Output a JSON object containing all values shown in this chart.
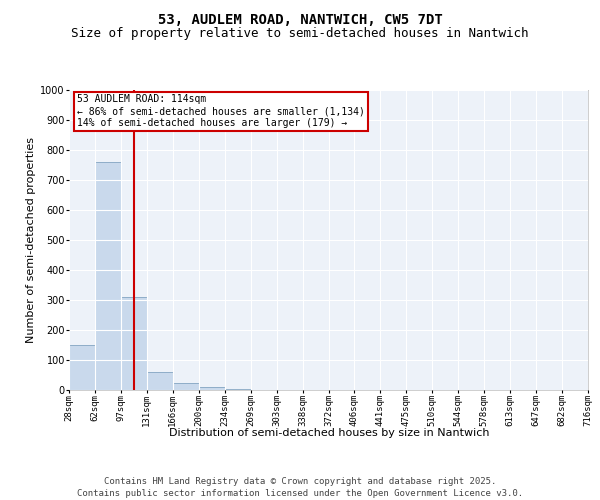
{
  "title_line1": "53, AUDLEM ROAD, NANTWICH, CW5 7DT",
  "title_line2": "Size of property relative to semi-detached houses in Nantwich",
  "xlabel": "Distribution of semi-detached houses by size in Nantwich",
  "ylabel": "Number of semi-detached properties",
  "annotation_title": "53 AUDLEM ROAD: 114sqm",
  "annotation_line2": "← 86% of semi-detached houses are smaller (1,134)",
  "annotation_line3": "14% of semi-detached houses are larger (179) →",
  "footer_line1": "Contains HM Land Registry data © Crown copyright and database right 2025.",
  "footer_line2": "Contains public sector information licensed under the Open Government Licence v3.0.",
  "bin_labels": [
    "28sqm",
    "62sqm",
    "97sqm",
    "131sqm",
    "166sqm",
    "200sqm",
    "234sqm",
    "269sqm",
    "303sqm",
    "338sqm",
    "372sqm",
    "406sqm",
    "441sqm",
    "475sqm",
    "510sqm",
    "544sqm",
    "578sqm",
    "613sqm",
    "647sqm",
    "682sqm",
    "716sqm"
  ],
  "bar_values": [
    150,
    760,
    310,
    60,
    25,
    10,
    2,
    0,
    0,
    0,
    0,
    0,
    0,
    0,
    0,
    0,
    0,
    0,
    0,
    0
  ],
  "bar_color": "#c9d9ec",
  "bar_edge_color": "#7096b8",
  "ylim": [
    0,
    1000
  ],
  "yticks": [
    0,
    100,
    200,
    300,
    400,
    500,
    600,
    700,
    800,
    900,
    1000
  ],
  "background_color": "#edf2f9",
  "grid_color": "#ffffff",
  "annotation_box_color": "#ffffff",
  "annotation_box_edge_color": "#cc0000",
  "red_line_color": "#cc0000",
  "title_fontsize": 10,
  "subtitle_fontsize": 9,
  "axis_label_fontsize": 8,
  "tick_fontsize": 6.5,
  "footer_fontsize": 6.5,
  "annotation_fontsize": 7
}
